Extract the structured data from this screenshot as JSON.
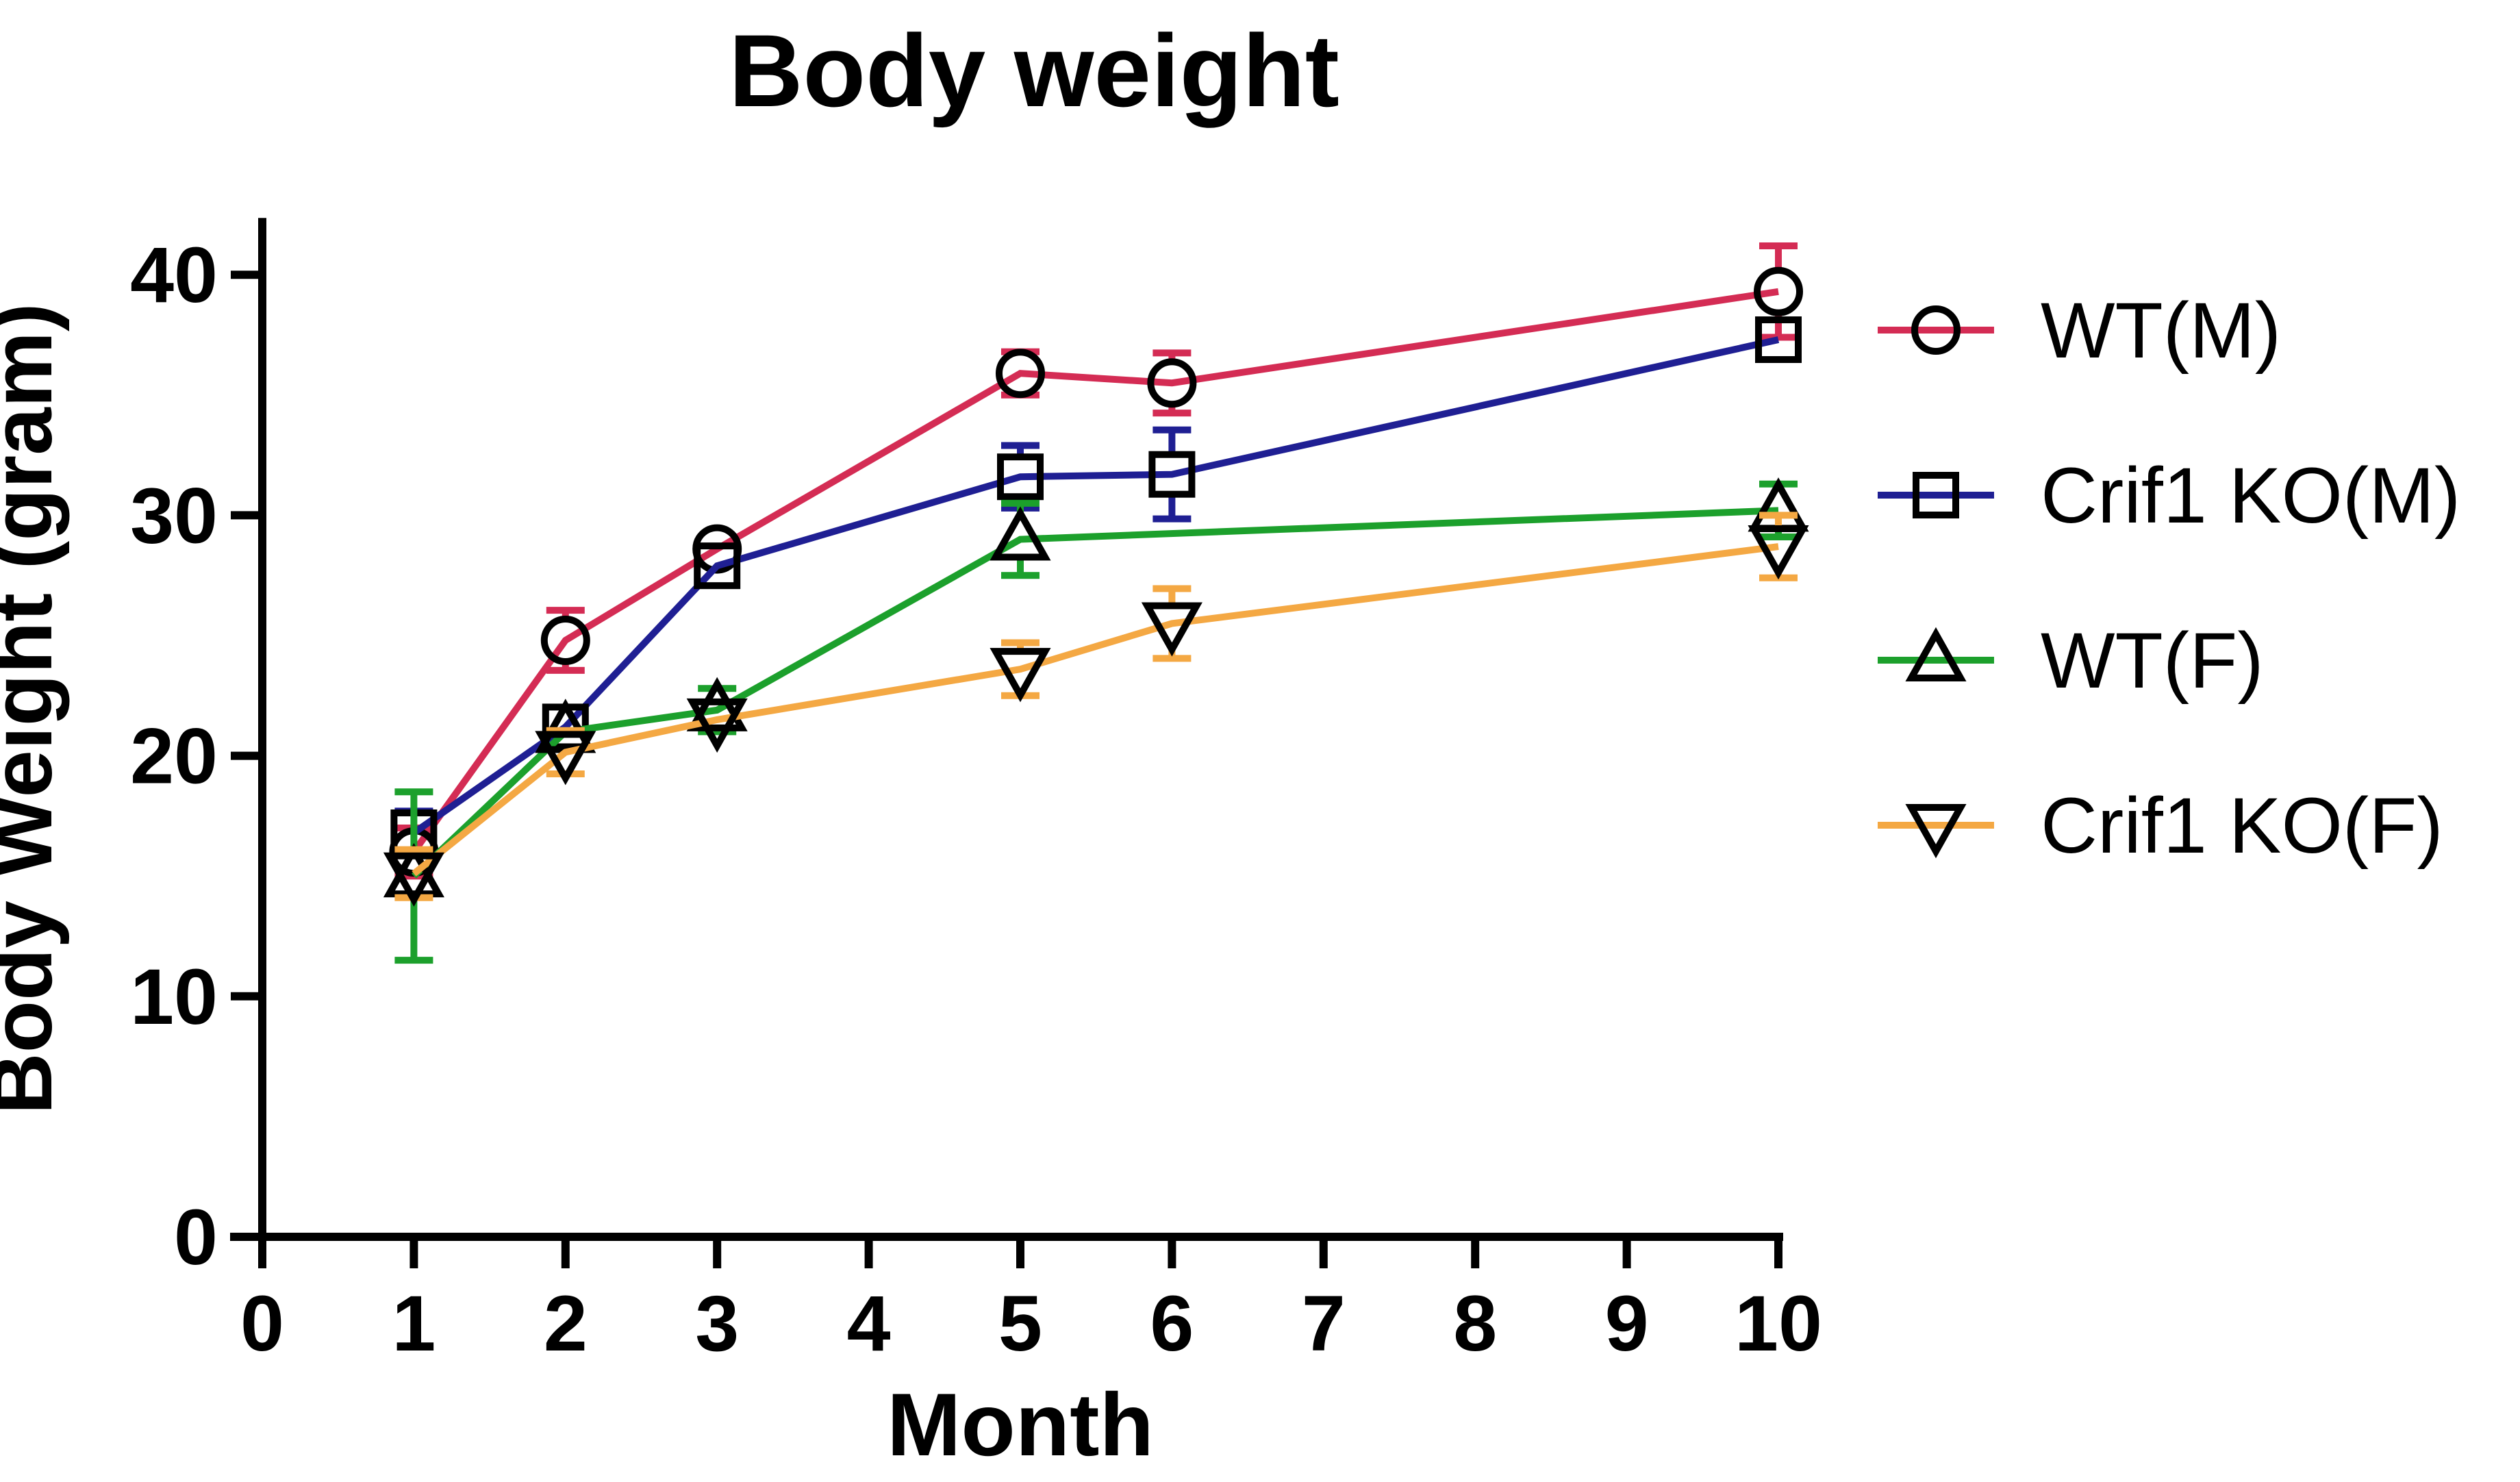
{
  "figure": {
    "title": "Body weight",
    "x_axis": {
      "label": "Month",
      "min": 0,
      "max": 10,
      "ticks": [
        0,
        1,
        2,
        3,
        4,
        5,
        6,
        7,
        8,
        9,
        10
      ]
    },
    "y_axis": {
      "label": "Body Weight (gram)",
      "min": 0,
      "max": 40,
      "ticks": [
        0,
        10,
        20,
        30,
        40
      ]
    }
  },
  "colors": {
    "wt_m": "#D42C54",
    "crif1_ko_m": "#1F1F93",
    "wt_f": "#1CA02C",
    "crif1_ko_f": "#F4A843",
    "marker_stroke": "#000000",
    "axis": "#000000",
    "background": "#ffffff"
  },
  "chart_data": {
    "type": "line",
    "title": "Body weight",
    "xlabel": "Month",
    "ylabel": "Body Weight (gram)",
    "xlim": [
      0,
      10
    ],
    "ylim": [
      0,
      40
    ],
    "x_ticks": [
      0,
      1,
      2,
      3,
      4,
      5,
      6,
      7,
      8,
      9,
      10
    ],
    "y_ticks": [
      0,
      10,
      20,
      30,
      40
    ],
    "grid": false,
    "error_bars": true,
    "legend_position": "right",
    "series": [
      {
        "name": "WT(M)",
        "color": "#D42C54",
        "marker": "circle-open",
        "points": [
          {
            "x": 1,
            "y": 16.0,
            "err": 1.0
          },
          {
            "x": 2,
            "y": 24.8,
            "err": 1.25
          },
          {
            "x": 3,
            "y": 28.6,
            "err": 0.5
          },
          {
            "x": 5,
            "y": 35.9,
            "err": 0.9
          },
          {
            "x": 6,
            "y": 35.5,
            "err": 1.25
          },
          {
            "x": 10,
            "y": 39.3,
            "err": 1.9
          }
        ]
      },
      {
        "name": "Crif1 KO(M)",
        "color": "#1F1F93",
        "marker": "square-open",
        "points": [
          {
            "x": 1,
            "y": 16.8,
            "err": 0.9
          },
          {
            "x": 2,
            "y": 21.2,
            "err": 0.8
          },
          {
            "x": 3,
            "y": 27.9,
            "err": 0.6
          },
          {
            "x": 5,
            "y": 31.6,
            "err": 1.3
          },
          {
            "x": 6,
            "y": 31.7,
            "err": 1.85
          },
          {
            "x": 10,
            "y": 37.3,
            "err": 0.8
          }
        ]
      },
      {
        "name": "WT(F)",
        "color": "#1CA02C",
        "marker": "triangle-up-open",
        "points": [
          {
            "x": 1,
            "y": 15.0,
            "err": 3.5
          },
          {
            "x": 2,
            "y": 21.0,
            "err": 0.8
          },
          {
            "x": 3,
            "y": 21.9,
            "err": 0.9
          },
          {
            "x": 5,
            "y": 29.0,
            "err": 1.5
          },
          {
            "x": 10,
            "y": 30.2,
            "err": 1.1
          }
        ]
      },
      {
        "name": "Crif1 KO(F)",
        "color": "#F4A843",
        "marker": "triangle-down-open",
        "points": [
          {
            "x": 1,
            "y": 15.1,
            "err": 1.0
          },
          {
            "x": 2,
            "y": 20.15,
            "err": 0.9
          },
          {
            "x": 3,
            "y": 21.5,
            "err": 0.7
          },
          {
            "x": 5,
            "y": 23.6,
            "err": 1.1
          },
          {
            "x": 6,
            "y": 25.5,
            "err": 1.45
          },
          {
            "x": 10,
            "y": 28.7,
            "err": 1.3
          }
        ]
      }
    ]
  }
}
